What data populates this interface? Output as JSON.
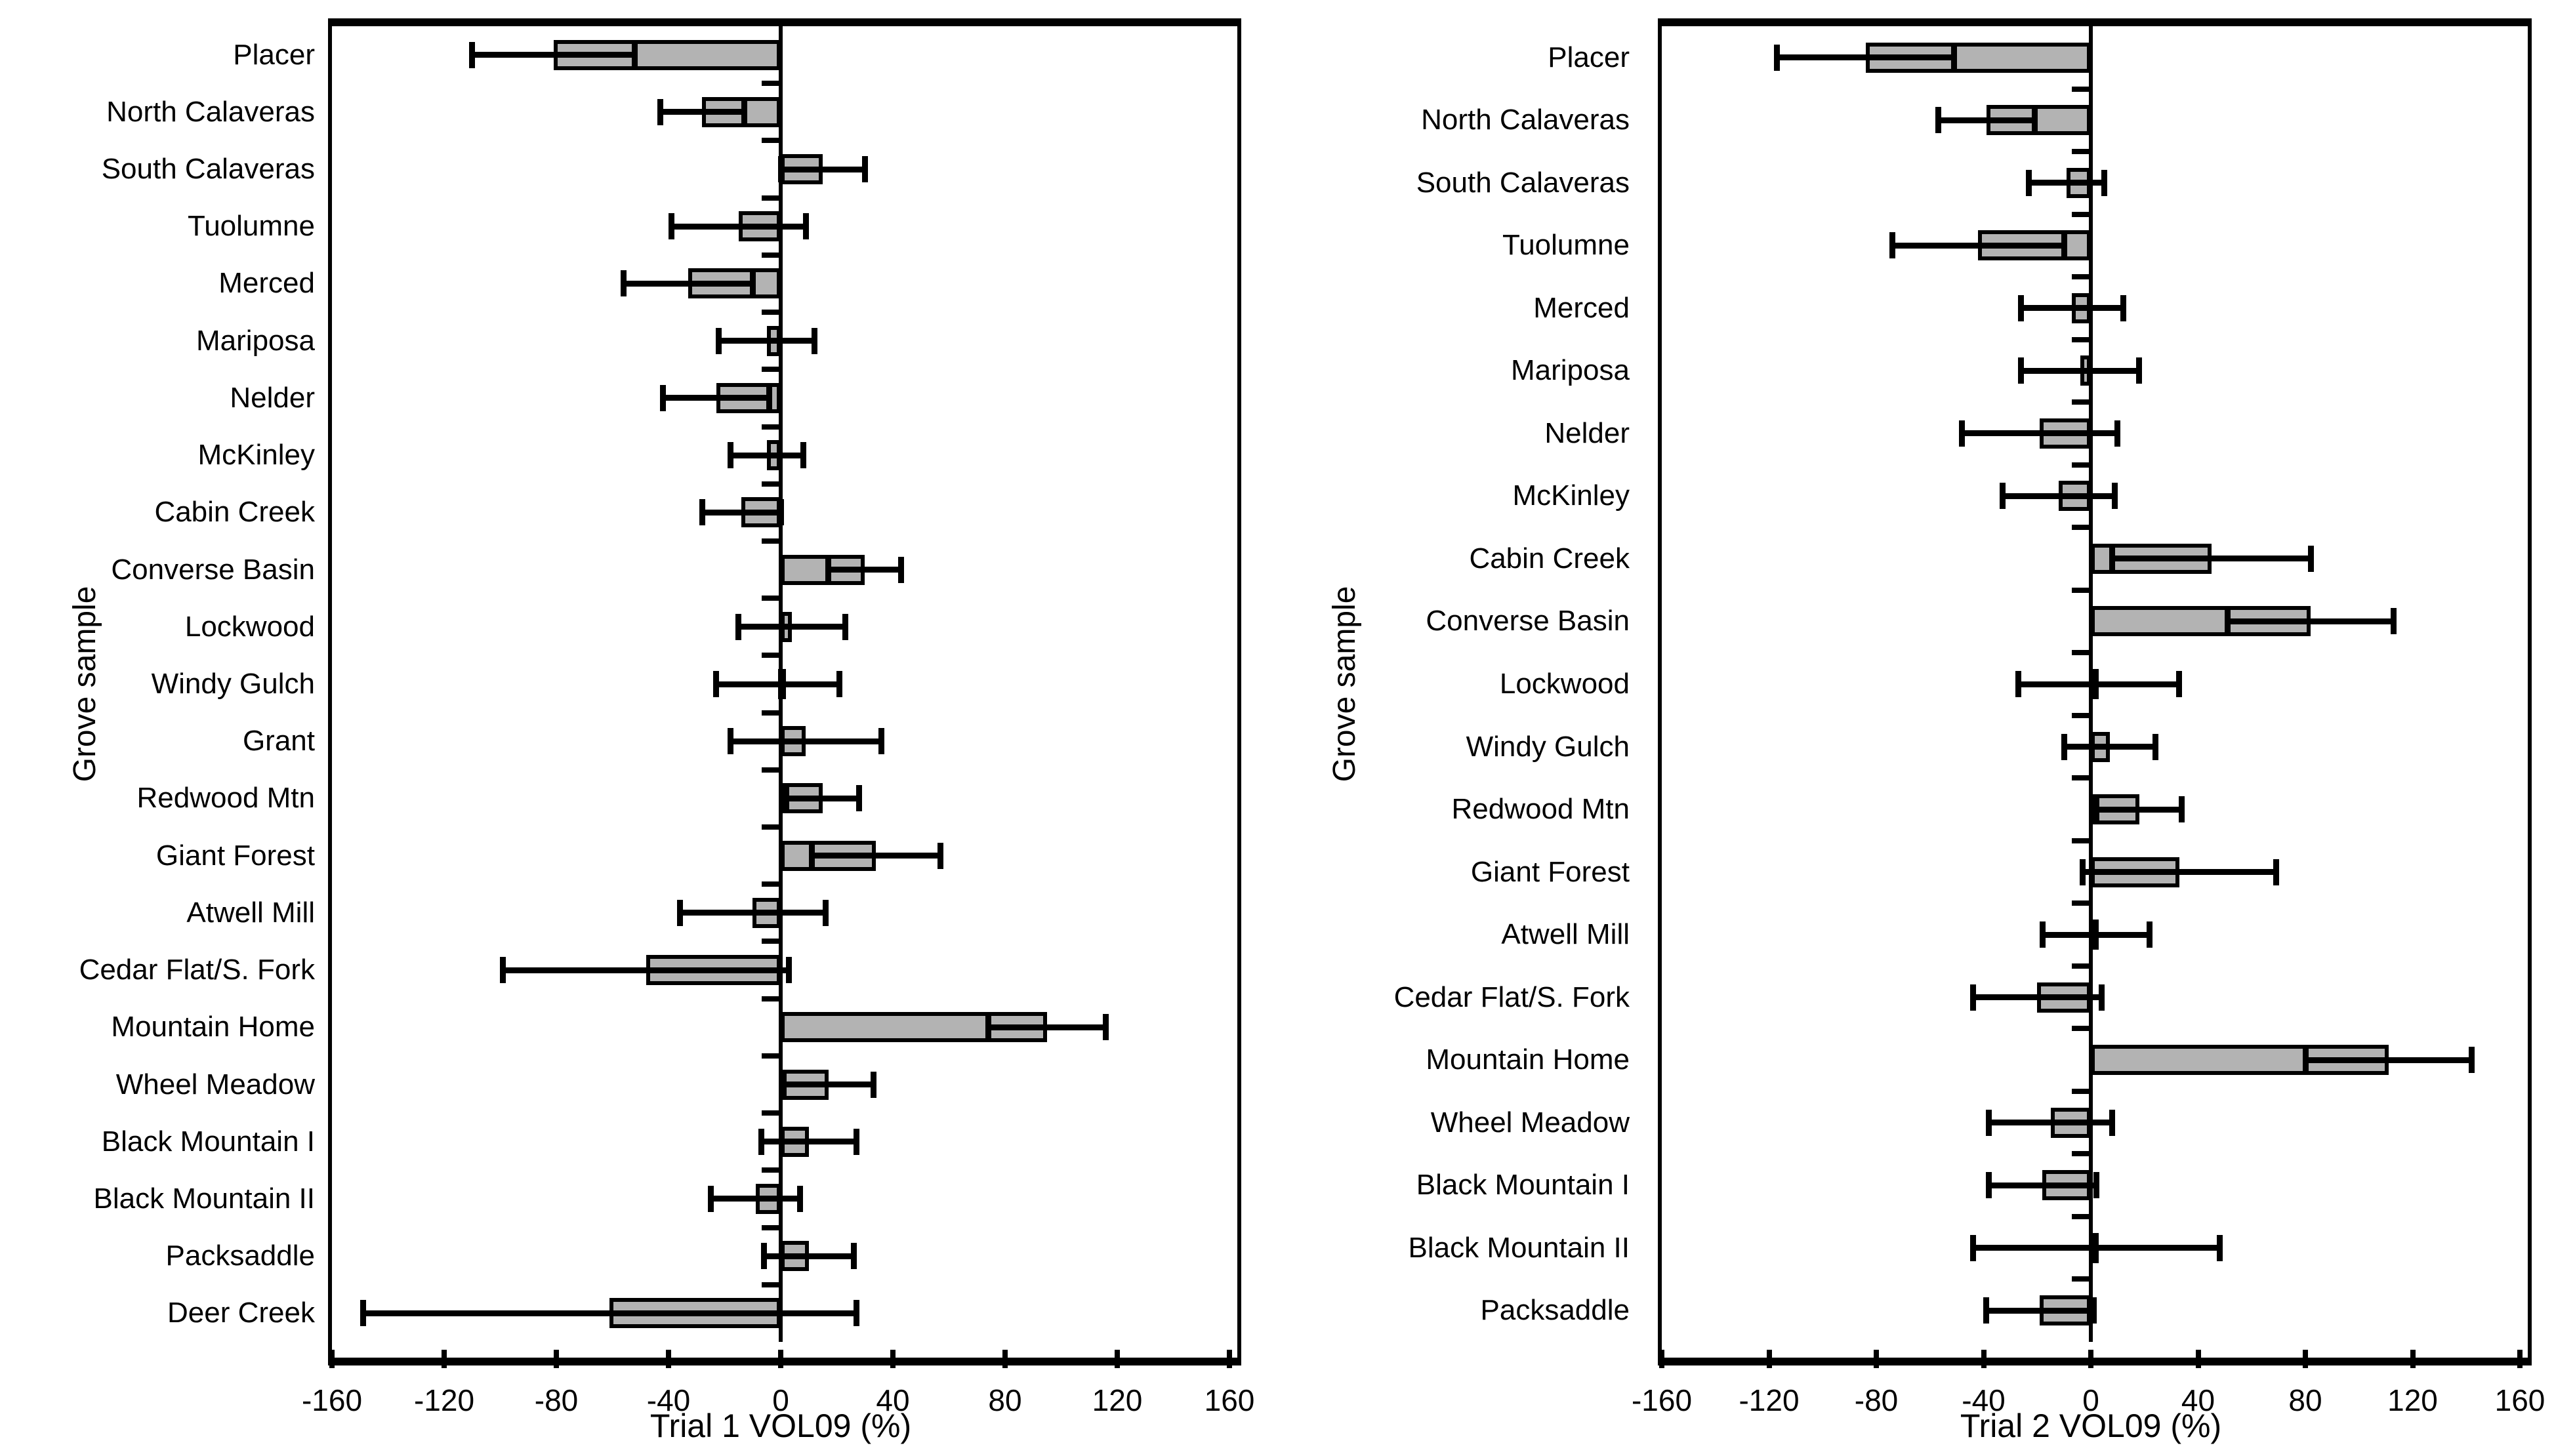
{
  "figure": {
    "y_axis_label": "Grove sample",
    "background": "#ffffff",
    "bar_fill_color": "#b3b3b3",
    "line_color": "#000000"
  },
  "chart_data": [
    {
      "type": "bar",
      "orientation": "horizontal",
      "xlabel": "Trial 1 VOL09 (%)",
      "ylabel": "Grove sample",
      "xlim": [
        -160,
        160
      ],
      "x_ticks": [
        -160,
        -120,
        -80,
        -40,
        0,
        40,
        80,
        120,
        160
      ],
      "grid": false,
      "error_bars": true,
      "categories": [
        "Placer",
        "North Calaveras",
        "South Calaveras",
        "Tuolumne",
        "Merced",
        "Mariposa",
        "Nelder",
        "McKinley",
        "Cabin Creek",
        "Converse Basin",
        "Lockwood",
        "Windy Gulch",
        "Grant",
        "Redwood Mtn",
        "Giant Forest",
        "Atwell Mill",
        "Cedar Flat/S. Fork",
        "Mountain Home",
        "Wheel Meadow",
        "Black Mountain I",
        "Black Mountain II",
        "Packsaddle",
        "Deer Creek"
      ],
      "values": [
        -81,
        -28,
        15,
        -15,
        -33,
        -5,
        -23,
        -5,
        -14,
        30,
        4,
        -1,
        9,
        15,
        34,
        -10,
        -48,
        95,
        17,
        10,
        -9,
        10,
        -61
      ],
      "error_low": [
        -110,
        -43,
        0,
        -39,
        -56,
        -22,
        -42,
        -18,
        -28,
        17,
        -15,
        -23,
        -18,
        2,
        11,
        -36,
        -99,
        74,
        1,
        -7,
        -25,
        -6,
        -149
      ],
      "error_high": [
        -52,
        -13,
        30,
        9,
        -10,
        12,
        -4,
        8,
        0,
        43,
        23,
        21,
        36,
        28,
        57,
        16,
        3,
        116,
        33,
        27,
        7,
        26,
        27
      ]
    },
    {
      "type": "bar",
      "orientation": "horizontal",
      "xlabel": "Trial 2 VOL09 (%)",
      "ylabel": "Grove sample",
      "xlim": [
        -160,
        160
      ],
      "x_ticks": [
        -160,
        -120,
        -80,
        -40,
        0,
        40,
        80,
        120,
        160
      ],
      "grid": false,
      "error_bars": true,
      "categories": [
        "Placer",
        "North Calaveras",
        "South Calaveras",
        "Tuolumne",
        "Merced",
        "Mariposa",
        "Nelder",
        "McKinley",
        "Cabin Creek",
        "Converse Basin",
        "Lockwood",
        "Windy Gulch",
        "Redwood Mtn",
        "Giant Forest",
        "Atwell Mill",
        "Cedar Flat/S. Fork",
        "Mountain Home",
        "Wheel Meadow",
        "Black Mountain I",
        "Black Mountain II",
        "Packsaddle"
      ],
      "values": [
        -84,
        -39,
        -9,
        -42,
        -7,
        -4,
        -19,
        -12,
        45,
        82,
        3,
        7,
        18,
        33,
        2,
        -20,
        111,
        -15,
        -18,
        2,
        -19
      ],
      "error_low": [
        -117,
        -57,
        -23,
        -74,
        -26,
        -26,
        -48,
        -33,
        8,
        51,
        -27,
        -10,
        2,
        -3,
        -18,
        -44,
        80,
        -38,
        -38,
        -44,
        -39
      ],
      "error_high": [
        -51,
        -21,
        5,
        -10,
        12,
        18,
        10,
        9,
        82,
        113,
        33,
        24,
        34,
        69,
        22,
        4,
        142,
        8,
        2,
        48,
        1
      ]
    }
  ]
}
